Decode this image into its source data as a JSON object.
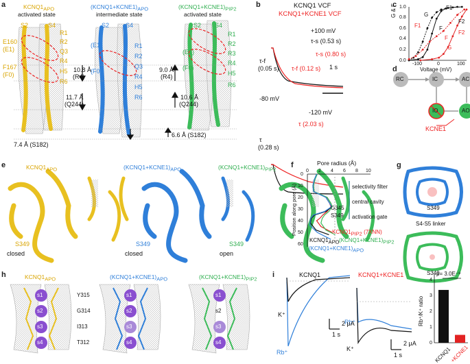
{
  "panels": {
    "a": {
      "letter": "a",
      "titles": [
        "KCNQ1APO activated state",
        "(KCNQ1+KCNE1)APO intermediate state",
        "(KCNQ1+KCNE1)PIP2 activated state"
      ],
      "t1": "KCNQ1",
      "t1s": "APO",
      "t1b": "activated state",
      "t2": "(KCNQ1+KCNE1)",
      "t2s": "APO",
      "t2b": "intermediate state",
      "t3": "(KCNQ1+KCNE1)",
      "t3s": "PIP2",
      "t3b": "activated state",
      "y_left": [
        "S2",
        "S4",
        "R1",
        "R2",
        "Q3",
        "R4",
        "H5",
        "R6",
        "E160",
        "(E1)",
        "F167",
        "(F0)"
      ],
      "b_labels": [
        "S2",
        "S4",
        "(E1)",
        "R1",
        "R2",
        "Q3",
        "(F0)",
        "R4",
        "H5",
        "R6"
      ],
      "g_labels": [
        "S2",
        "S4",
        "R1",
        "R2",
        "R3",
        "(E1)",
        "R4",
        "(F0)",
        "H5",
        "R6"
      ],
      "d1": "10.8 Å",
      "d1b": "(R4)",
      "d2": "9.0 Å",
      "d2b": "(R4)",
      "d3": "11.7 Å",
      "d3b": "(Q244)",
      "d4": "10.6 Å",
      "d4b": "(Q244)",
      "d5": "7.4 Å (S182)",
      "d6": "6.6 Å (S182)"
    },
    "b": {
      "letter": "b",
      "legend1": "KCNQ1 VCF",
      "legend2": "KCNQ1+KCNE1 VCF",
      "v1": "+100 mV",
      "tau_s_k": "τ-s",
      "tau_s_k_val": "(0.53 s)",
      "tau_s_r": "τ-s",
      "tau_s_r_val": "(0.80 s)",
      "tau_f_k": "τ-f",
      "tau_f_k_val": "(0.05 s)",
      "tau_f_r": "τ-f",
      "tau_f_r_val": "(0.12 s)",
      "scale": "1 s",
      "v2": "-80 mV",
      "v3": "-120 mV",
      "tau_k": "τ",
      "tau_k_val": "(0.28 s)",
      "tau_r": "τ",
      "tau_r_val": "(2.03 s)"
    },
    "c": {
      "letter": "c",
      "ylabel": "G & F",
      "xlabel": "Voltage (mV)",
      "yticks": [
        "0.0",
        "0.2",
        "0.4",
        "0.6",
        "0.8",
        "1.0"
      ],
      "xticks": [
        "-100",
        "0",
        "100"
      ],
      "labels": [
        "G",
        "F1",
        "F",
        "F1",
        "F",
        "F2",
        "F2",
        "G"
      ]
    },
    "d": {
      "letter": "d",
      "states": [
        "RC",
        "IC",
        "AC",
        "IO",
        "AO"
      ],
      "kcne1": "KCNE1"
    },
    "e": {
      "letter": "e",
      "t1": "KCNQ1",
      "t1s": "APO",
      "t2": "(KCNQ1+KCNE1)",
      "t2s": "APO",
      "t3": "(KCNQ1+KCNE1)",
      "t3s": "PIP2",
      "s1": "S349",
      "s2": "S349",
      "s3": "S349",
      "st1": "closed",
      "st2": "closed",
      "st3": "open"
    },
    "f": {
      "letter": "f",
      "xlabel": "Pore radius (Å)",
      "ylabel": "Position along pore (Å)",
      "xticks": [
        "0",
        "2",
        "4",
        "6",
        "8",
        "10"
      ],
      "yticks": [
        "0",
        "10",
        "20",
        "30",
        "40",
        "50",
        "60"
      ],
      "regions": [
        "selectivity filter",
        "central cavity",
        "activation gate"
      ],
      "res1": "G345",
      "res2": "S349",
      "l1": "KCNQ1",
      "l1s": "PIP2",
      "l1b": "(7XNN)",
      "l2": "KCNQ1",
      "l2s": "APO",
      "l3": "(KCNQ1+KCNE1)",
      "l3s": "PIP2",
      "l4": "(KCNQ1+KCNE1)",
      "l4s": "APO"
    },
    "g": {
      "letter": "g",
      "res1": "S349",
      "linker": "S4-S5 linker",
      "res2": "S349"
    },
    "h": {
      "letter": "h",
      "t1": "KCNQ1",
      "t1s": "APO",
      "t2": "(KCNQ1+KCNE1)",
      "t2s": "APO",
      "t3": "(KCNQ1+KCNE1)",
      "t3s": "PIP2",
      "sites": [
        "s1",
        "s2",
        "s3",
        "s4"
      ],
      "res": [
        "Y315",
        "G314",
        "I313",
        "T312"
      ]
    },
    "i": {
      "letter": "i",
      "t1": "KCNQ1",
      "t2": "KCNQ1+KCNE1",
      "k": "K⁺",
      "rb": "Rb⁺",
      "scale_i": "2 μA",
      "scale_t": "1 s",
      "ylabel": "Rb⁺/K⁺ ratio",
      "pval": "p= 3.0E⁻⁹",
      "yticks": [
        "0",
        "1",
        "2",
        "3",
        "4"
      ],
      "bars": [
        "KCNQ1",
        "+KCNE1"
      ]
    }
  },
  "colors": {
    "yellow": "#e8c020",
    "blue": "#2f7fd9",
    "green": "#3cbc5a",
    "red": "#e22222",
    "purple": "#8a4fd0"
  },
  "chart_data": [
    {
      "type": "bar",
      "categories": [
        "KCNQ1",
        "+KCNE1"
      ],
      "values": [
        3.35,
        0.5
      ],
      "ylabel": "Rb⁺/K⁺ ratio",
      "ylim": [
        0,
        4
      ]
    },
    {
      "type": "line",
      "xlabel": "Pore radius (Å)",
      "ylabel": "Position along pore (Å)",
      "xlim": [
        0,
        10
      ],
      "ylim": [
        0,
        60
      ],
      "series": [
        {
          "name": "KCNQ1PIP2 (7XNN)",
          "color": "#e22222",
          "x": [
            1.5,
            1.2,
            1.0,
            1.1,
            3.0,
            3.6,
            3.8,
            3.2,
            2.5,
            2.0,
            1.5,
            2.2,
            4.0
          ],
          "y": [
            0,
            5,
            10,
            15,
            20,
            25,
            28,
            32,
            35,
            38,
            40,
            45,
            50
          ]
        },
        {
          "name": "KCNQ1APO",
          "color": "#111111",
          "x": [
            1.5,
            1.1,
            0.9,
            1.0,
            3.2,
            3.8,
            4.0,
            3.0,
            1.2,
            0.6,
            0.5,
            1.4,
            3.5
          ],
          "y": [
            0,
            5,
            10,
            15,
            20,
            25,
            28,
            32,
            35,
            38,
            42,
            48,
            52
          ]
        },
        {
          "name": "(KCNQ1+KCNE1)PIP2",
          "color": "#3cbc5a",
          "x": [
            1.6,
            1.2,
            1.0,
            1.1,
            3.2,
            3.8,
            4.0,
            3.5,
            2.8,
            2.4,
            2.2,
            3.0,
            4.5
          ],
          "y": [
            0,
            5,
            10,
            15,
            20,
            25,
            28,
            32,
            35,
            38,
            42,
            48,
            52
          ]
        },
        {
          "name": "(KCNQ1+KCNE1)APO",
          "color": "#2f7fd9",
          "x": [
            1.5,
            1.1,
            0.9,
            1.0,
            3.0,
            3.6,
            3.9,
            2.8,
            1.0,
            0.5,
            0.4,
            1.6,
            3.8
          ],
          "y": [
            0,
            5,
            10,
            15,
            20,
            25,
            28,
            32,
            35,
            38,
            44,
            50,
            56
          ]
        }
      ]
    },
    {
      "type": "line",
      "xlabel": "Voltage (mV)",
      "ylabel": "G & F",
      "xlim": [
        -150,
        100
      ],
      "ylim": [
        0,
        1.0
      ],
      "series": [
        {
          "name": "G",
          "color": "#111111",
          "x": [
            -150,
            -110,
            -90,
            -70,
            -50,
            -30,
            -10,
            10,
            40,
            80
          ],
          "y": [
            0,
            0.02,
            0.06,
            0.2,
            0.5,
            0.78,
            0.92,
            0.97,
            0.99,
            1.0
          ]
        },
        {
          "name": "F",
          "color": "#111111",
          "x": [
            -150,
            -130,
            -110,
            -90,
            -70,
            -50,
            -30,
            -10,
            20,
            60
          ],
          "y": [
            0,
            0.05,
            0.15,
            0.35,
            0.6,
            0.8,
            0.9,
            0.95,
            0.98,
            1.0
          ]
        },
        {
          "name": "G",
          "color": "#e22222",
          "x": [
            -100,
            -50,
            -20,
            0,
            20,
            40,
            60,
            80,
            100
          ],
          "y": [
            0,
            0.02,
            0.05,
            0.12,
            0.25,
            0.45,
            0.65,
            0.82,
            0.95
          ]
        },
        {
          "name": "F",
          "color": "#e22222",
          "x": [
            -150,
            -120,
            -90,
            -60,
            -30,
            0,
            30,
            60,
            90
          ],
          "y": [
            0.02,
            0.08,
            0.2,
            0.35,
            0.45,
            0.55,
            0.7,
            0.85,
            0.95
          ]
        }
      ]
    }
  ]
}
